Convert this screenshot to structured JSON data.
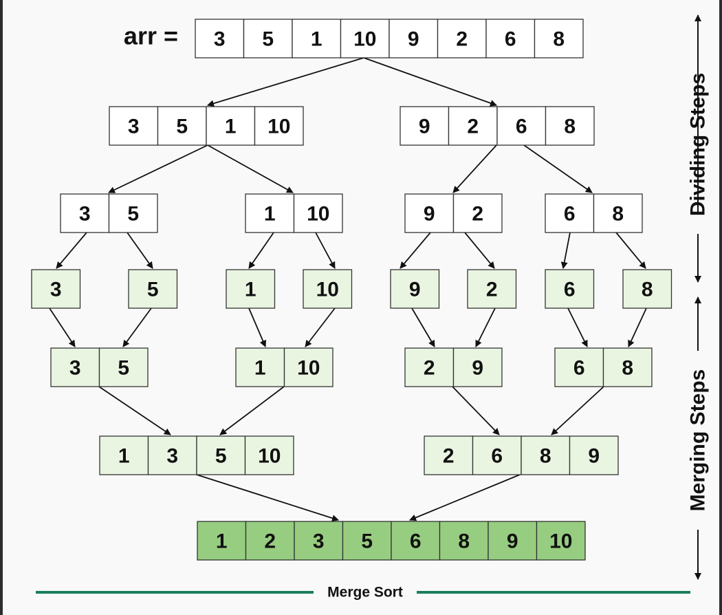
{
  "array_label": "arr =",
  "side_labels": {
    "dividing": "Dividing Steps",
    "merging": "Merging Steps"
  },
  "footer_label": "Merge Sort",
  "colors": {
    "dividing_fill": "#ffffff",
    "merging_fill": "#e9f5e1",
    "sorted_fill": "#97cd80",
    "border": "#333333",
    "arrow": "#111111",
    "footer_line": "#1a7f5a"
  },
  "rows": [
    {
      "kind": "dividing",
      "arrays": [
        [
          3,
          5,
          1,
          10,
          9,
          2,
          6,
          8
        ]
      ]
    },
    {
      "kind": "dividing",
      "arrays": [
        [
          3,
          5,
          1,
          10
        ],
        [
          9,
          2,
          6,
          8
        ]
      ]
    },
    {
      "kind": "dividing",
      "arrays": [
        [
          3,
          5
        ],
        [
          1,
          10
        ],
        [
          9,
          2
        ],
        [
          6,
          8
        ]
      ]
    },
    {
      "kind": "merging",
      "arrays": [
        [
          3
        ],
        [
          5
        ],
        [
          1
        ],
        [
          10
        ],
        [
          9
        ],
        [
          2
        ],
        [
          6
        ],
        [
          8
        ]
      ]
    },
    {
      "kind": "merging",
      "arrays": [
        [
          3,
          5
        ],
        [
          1,
          10
        ],
        [
          2,
          9
        ],
        [
          6,
          8
        ]
      ]
    },
    {
      "kind": "merging",
      "arrays": [
        [
          1,
          3,
          5,
          10
        ],
        [
          2,
          6,
          8,
          9
        ]
      ]
    },
    {
      "kind": "sorted",
      "arrays": [
        [
          1,
          2,
          3,
          5,
          6,
          8,
          9,
          10
        ]
      ]
    }
  ]
}
